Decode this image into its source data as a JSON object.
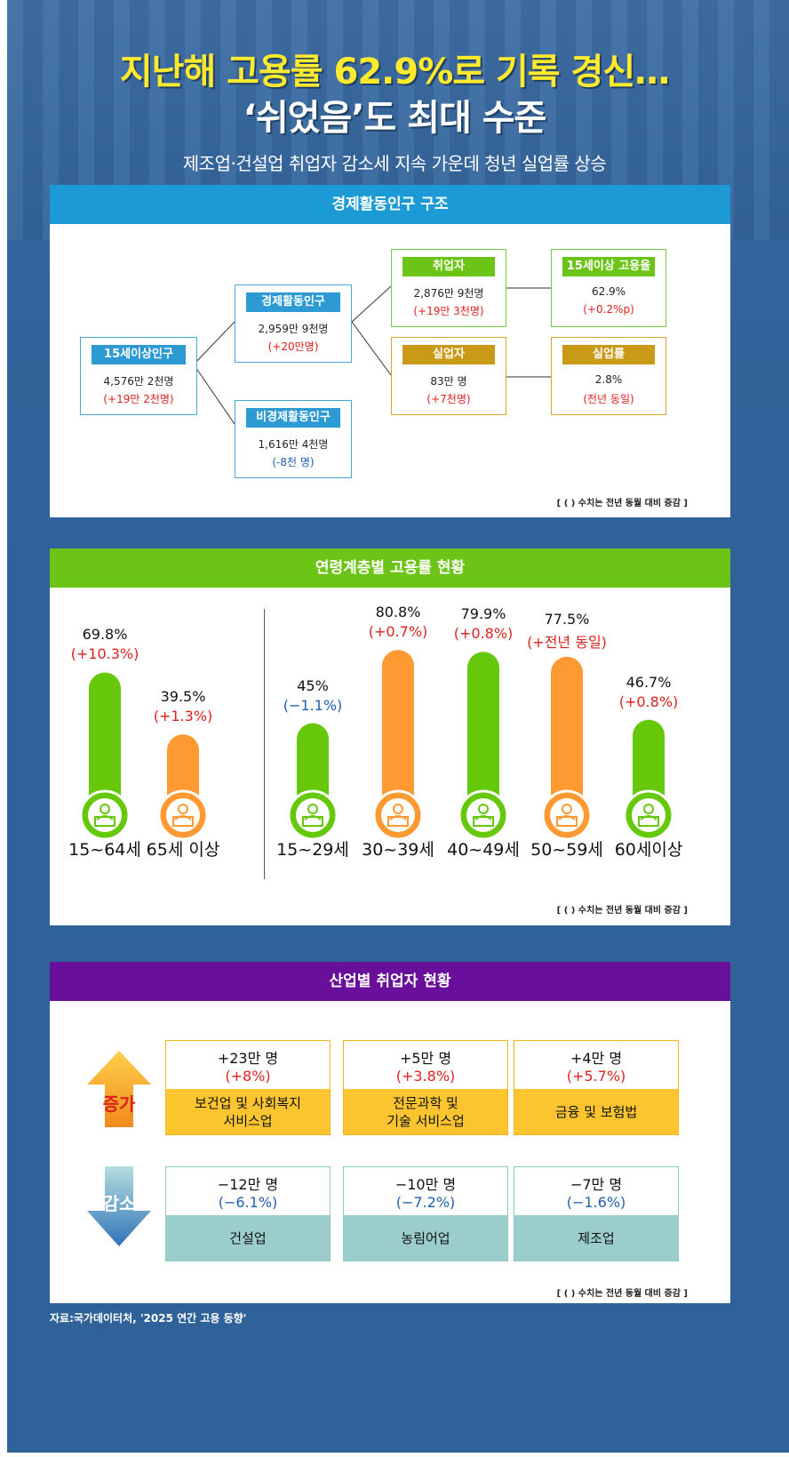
{
  "header": {
    "title_line1": "지난해 고용률 62.9%로 기록 경신…",
    "title_line2": "‘쉬었음’도 최대 수준",
    "subtitle": "제조업·건설업 취업자 감소세 지속 가운데 청년 실업률 상승"
  },
  "structure": {
    "band_title": "경제활동인구 구조",
    "colors": {
      "band": "#1b9ad6",
      "box_blue": "#2d9ad4",
      "box_green": "#6cc417",
      "box_gold": "#c89a15"
    },
    "pop15": {
      "label": "15세이상인구",
      "value": "4,576만 2천명",
      "change": "(+19만 2천명)"
    },
    "active": {
      "label": "경제활동인구",
      "value": "2,959만 9천명",
      "change": "(+20만명)"
    },
    "inactive": {
      "label": "비경제활동인구",
      "value": "1,616만 4천명",
      "change": "(-8천 명)"
    },
    "employed": {
      "label": "취업자",
      "value": "2,876만 9천명",
      "change": "(+19만 3천명)"
    },
    "unemployed": {
      "label": "실업자",
      "value": "83만 명",
      "change": "(+7천명)"
    },
    "emp_rate": {
      "label": "15세이상  고용율",
      "value": "62.9%",
      "change": "(+0.2%p)"
    },
    "unemp_rate": {
      "label": "실업률",
      "value": "2.8%",
      "change": "(전년 동일)"
    },
    "note": "[ ( ) 수치는 전년 동월 대비 증감 ]"
  },
  "age": {
    "band_title": "연령계층별 고용률 현황",
    "note": "[ ( ) 수치는 전년 동월 대비 증감 ]",
    "colors": {
      "band": "#6cc417",
      "green": "#66c80a",
      "orange": "#ff9a33",
      "up": "#e0201c",
      "down": "#1f5fb0"
    }
  },
  "chart_data": {
    "type": "bar",
    "title": "연령계층별 고용률 현황",
    "unit": "%",
    "categories": [
      "15~64세",
      "65세 이상",
      "15~29세",
      "30~39세",
      "40~49세",
      "50~59세",
      "60세이상"
    ],
    "values": [
      69.8,
      39.5,
      45,
      80.8,
      79.9,
      77.5,
      46.7
    ],
    "value_labels": [
      "69.8%",
      "39.5%",
      "45%",
      "80.8%",
      "79.9%",
      "77.5%",
      "46.7%"
    ],
    "change_labels": [
      "(+10.3%)",
      "(+1.3%)",
      "(−1.1%)",
      "(+0.7%)",
      "(+0.8%)",
      "(+전년 동일)",
      "(+0.8%)"
    ],
    "change_direction": [
      "up",
      "up",
      "down",
      "up",
      "up",
      "up",
      "up"
    ],
    "bar_colors": [
      "green",
      "orange",
      "green",
      "orange",
      "green",
      "orange",
      "green"
    ],
    "groups": [
      [
        "15~64세",
        "65세 이상"
      ],
      [
        "15~29세",
        "30~39세",
        "40~49세",
        "50~59세",
        "60세이상"
      ]
    ]
  },
  "industry": {
    "band_title": "산업별 취업자 현황",
    "colors": {
      "band": "#6a0f9c",
      "inc_border": "#f2b61c",
      "inc_fill": "#fcc52f",
      "dec_border": "#8ec8c8",
      "dec_fill": "#9bcdcd"
    },
    "increase_label": "증가",
    "decrease_label": "감소",
    "increase": [
      {
        "value": "+23만 명",
        "pct": "(+8%)",
        "name": "보건업 및 사회복지\n서비스업"
      },
      {
        "value": "+5만 명",
        "pct": "(+3.8%)",
        "name": "전문과학 및\n기술 서비스업"
      },
      {
        "value": "+4만 명",
        "pct": "(+5.7%)",
        "name": "금융 및 보험법"
      }
    ],
    "decrease": [
      {
        "value": "−12만 명",
        "pct": "(−6.1%)",
        "name": "건설업"
      },
      {
        "value": "−10만 명",
        "pct": "(−7.2%)",
        "name": "농림어업"
      },
      {
        "value": "−7만 명",
        "pct": "(−1.6%)",
        "name": "제조업"
      }
    ],
    "note": "[ ( ) 수치는 전년 동월 대비 증감 ]"
  },
  "source": "자료:국가데이터처, '2025 연간 고용 동향'"
}
